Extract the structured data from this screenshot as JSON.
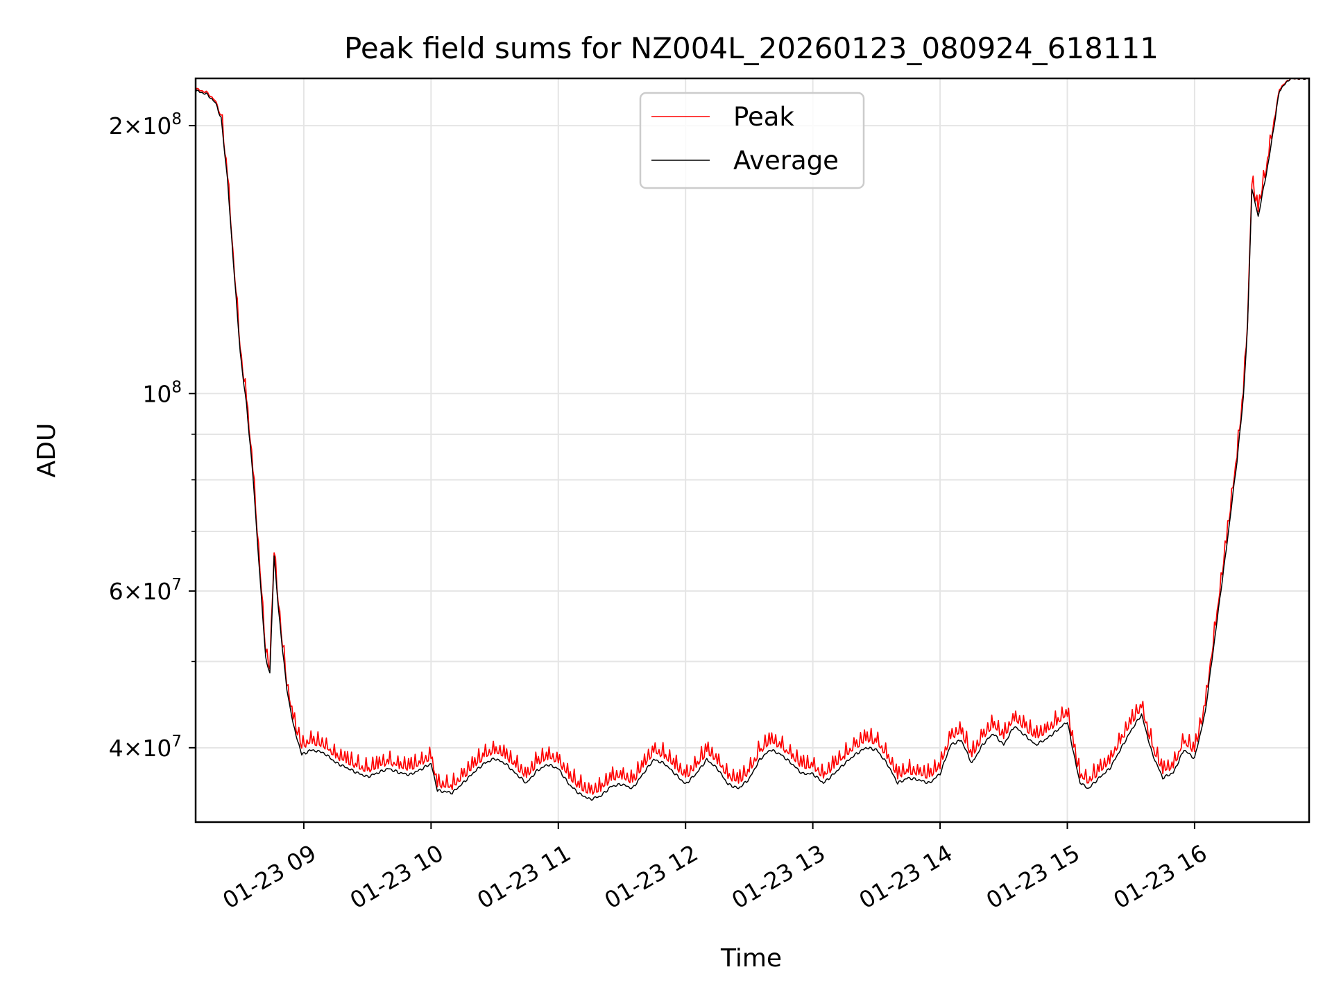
{
  "chart_data": {
    "type": "line",
    "title": "Peak field sums for NZ004L_20260123_080924_618111",
    "xlabel": "Time",
    "ylabel": "ADU",
    "yscale": "log",
    "xlim": [
      "2026-01-23 08:09",
      "2026-01-23 16:54"
    ],
    "ylim": [
      33000000,
      226000000
    ],
    "grid": true,
    "legend_position": "upper center",
    "x_ticks": [
      {
        "t": "2026-01-23 09:00",
        "label": "01-23 09"
      },
      {
        "t": "2026-01-23 10:00",
        "label": "01-23 10"
      },
      {
        "t": "2026-01-23 11:00",
        "label": "01-23 11"
      },
      {
        "t": "2026-01-23 12:00",
        "label": "01-23 12"
      },
      {
        "t": "2026-01-23 13:00",
        "label": "01-23 13"
      },
      {
        "t": "2026-01-23 14:00",
        "label": "01-23 14"
      },
      {
        "t": "2026-01-23 15:00",
        "label": "01-23 15"
      },
      {
        "t": "2026-01-23 16:00",
        "label": "01-23 16"
      }
    ],
    "y_major_ticks": [
      {
        "value": 40000000,
        "mant": "4",
        "exp": "7"
      },
      {
        "value": 60000000,
        "mant": "6",
        "exp": "7"
      },
      {
        "value": 100000000,
        "mant": "",
        "exp": "8"
      },
      {
        "value": 200000000,
        "mant": "2",
        "exp": "8"
      }
    ],
    "y_minor_ticks": [
      50000000,
      70000000,
      80000000,
      90000000
    ],
    "series": [
      {
        "name": "Peak",
        "color": "#ff0000",
        "jitter": 1,
        "x": [
          "2026-01-23 08:09",
          "2026-01-23 08:14",
          "2026-01-23 08:18",
          "2026-01-23 08:21",
          "2026-01-23 08:24",
          "2026-01-23 08:26",
          "2026-01-23 08:28",
          "2026-01-23 08:30",
          "2026-01-23 08:33",
          "2026-01-23 08:36",
          "2026-01-23 08:38",
          "2026-01-23 08:40",
          "2026-01-23 08:42",
          "2026-01-23 08:44",
          "2026-01-23 08:46",
          "2026-01-23 08:48",
          "2026-01-23 08:50",
          "2026-01-23 08:52",
          "2026-01-23 08:55",
          "2026-01-23 08:59",
          "2026-01-23 09:04",
          "2026-01-23 09:10",
          "2026-01-23 09:15",
          "2026-01-23 09:20",
          "2026-01-23 09:25",
          "2026-01-23 09:30",
          "2026-01-23 09:35",
          "2026-01-23 09:40",
          "2026-01-23 09:45",
          "2026-01-23 09:50",
          "2026-01-23 09:55",
          "2026-01-23 10:00",
          "2026-01-23 10:03",
          "2026-01-23 10:10",
          "2026-01-23 10:15",
          "2026-01-23 10:20",
          "2026-01-23 10:25",
          "2026-01-23 10:30",
          "2026-01-23 10:35",
          "2026-01-23 10:40",
          "2026-01-23 10:45",
          "2026-01-23 10:50",
          "2026-01-23 10:55",
          "2026-01-23 11:00",
          "2026-01-23 11:05",
          "2026-01-23 11:10",
          "2026-01-23 11:15",
          "2026-01-23 11:20",
          "2026-01-23 11:25",
          "2026-01-23 11:30",
          "2026-01-23 11:35",
          "2026-01-23 11:40",
          "2026-01-23 11:45",
          "2026-01-23 11:50",
          "2026-01-23 11:55",
          "2026-01-23 12:00",
          "2026-01-23 12:05",
          "2026-01-23 12:10",
          "2026-01-23 12:15",
          "2026-01-23 12:20",
          "2026-01-23 12:25",
          "2026-01-23 12:30",
          "2026-01-23 12:35",
          "2026-01-23 12:40",
          "2026-01-23 12:45",
          "2026-01-23 12:50",
          "2026-01-23 12:55",
          "2026-01-23 13:00",
          "2026-01-23 13:05",
          "2026-01-23 13:10",
          "2026-01-23 13:15",
          "2026-01-23 13:20",
          "2026-01-23 13:25",
          "2026-01-23 13:30",
          "2026-01-23 13:35",
          "2026-01-23 13:40",
          "2026-01-23 13:45",
          "2026-01-23 13:50",
          "2026-01-23 13:55",
          "2026-01-23 14:00",
          "2026-01-23 14:05",
          "2026-01-23 14:10",
          "2026-01-23 14:15",
          "2026-01-23 14:20",
          "2026-01-23 14:25",
          "2026-01-23 14:30",
          "2026-01-23 14:35",
          "2026-01-23 14:40",
          "2026-01-23 14:45",
          "2026-01-23 14:50",
          "2026-01-23 14:55",
          "2026-01-23 15:00",
          "2026-01-23 15:03",
          "2026-01-23 15:06",
          "2026-01-23 15:10",
          "2026-01-23 15:15",
          "2026-01-23 15:20",
          "2026-01-23 15:25",
          "2026-01-23 15:30",
          "2026-01-23 15:35",
          "2026-01-23 15:40",
          "2026-01-23 15:45",
          "2026-01-23 15:50",
          "2026-01-23 15:55",
          "2026-01-23 16:00",
          "2026-01-23 16:05",
          "2026-01-23 16:10",
          "2026-01-23 16:15",
          "2026-01-23 16:20",
          "2026-01-23 16:23",
          "2026-01-23 16:25",
          "2026-01-23 16:27",
          "2026-01-23 16:30",
          "2026-01-23 16:35",
          "2026-01-23 16:40",
          "2026-01-23 16:45",
          "2026-01-23 16:54"
        ],
        "y": [
          220000000,
          218000000,
          214000000,
          205000000,
          175000000,
          150000000,
          130000000,
          112000000,
          98000000,
          82000000,
          70000000,
          60000000,
          51000000,
          49000000,
          66000000,
          58000000,
          52000000,
          47000000,
          43000000,
          40000000,
          40500000,
          40000000,
          39000000,
          38500000,
          38000000,
          37600000,
          38000000,
          38400000,
          38000000,
          37800000,
          38300000,
          38900000,
          36200000,
          36000000,
          37000000,
          38000000,
          39000000,
          39500000,
          39000000,
          38000000,
          37000000,
          38300000,
          38900000,
          38500000,
          37000000,
          36000000,
          35500000,
          35800000,
          36800000,
          37000000,
          36500000,
          38000000,
          39500000,
          39000000,
          38000000,
          37000000,
          38000000,
          39500000,
          38500000,
          37000000,
          36500000,
          37500000,
          39500000,
          40500000,
          40000000,
          39000000,
          38000000,
          38000000,
          37000000,
          38000000,
          39000000,
          40000000,
          40700000,
          40500000,
          39000000,
          37000000,
          37500000,
          37300000,
          37000000,
          38000000,
          41000000,
          41500000,
          39000000,
          41000000,
          42200000,
          41000000,
          43000000,
          42000000,
          41000000,
          41600000,
          42500000,
          43500000,
          40000000,
          37000000,
          36500000,
          37500000,
          38500000,
          40500000,
          42500000,
          44300000,
          40000000,
          37500000,
          38000000,
          40500000,
          39500000,
          44500000,
          55000000,
          68000000,
          85000000,
          100000000,
          120000000,
          172000000,
          160000000,
          185000000,
          220000000,
          226000000,
          226000000
        ]
      },
      {
        "name": "Average",
        "color": "#000000",
        "jitter": 0,
        "x": [
          "2026-01-23 08:09",
          "2026-01-23 08:14",
          "2026-01-23 08:18",
          "2026-01-23 08:21",
          "2026-01-23 08:24",
          "2026-01-23 08:26",
          "2026-01-23 08:28",
          "2026-01-23 08:30",
          "2026-01-23 08:33",
          "2026-01-23 08:36",
          "2026-01-23 08:38",
          "2026-01-23 08:40",
          "2026-01-23 08:42",
          "2026-01-23 08:44",
          "2026-01-23 08:46",
          "2026-01-23 08:48",
          "2026-01-23 08:50",
          "2026-01-23 08:52",
          "2026-01-23 08:55",
          "2026-01-23 08:59",
          "2026-01-23 09:04",
          "2026-01-23 09:10",
          "2026-01-23 09:15",
          "2026-01-23 09:20",
          "2026-01-23 09:25",
          "2026-01-23 09:30",
          "2026-01-23 09:35",
          "2026-01-23 09:40",
          "2026-01-23 09:45",
          "2026-01-23 09:50",
          "2026-01-23 09:55",
          "2026-01-23 10:00",
          "2026-01-23 10:03",
          "2026-01-23 10:10",
          "2026-01-23 10:15",
          "2026-01-23 10:20",
          "2026-01-23 10:25",
          "2026-01-23 10:30",
          "2026-01-23 10:35",
          "2026-01-23 10:40",
          "2026-01-23 10:45",
          "2026-01-23 10:50",
          "2026-01-23 10:55",
          "2026-01-23 11:00",
          "2026-01-23 11:05",
          "2026-01-23 11:10",
          "2026-01-23 11:15",
          "2026-01-23 11:20",
          "2026-01-23 11:25",
          "2026-01-23 11:30",
          "2026-01-23 11:35",
          "2026-01-23 11:40",
          "2026-01-23 11:45",
          "2026-01-23 11:50",
          "2026-01-23 11:55",
          "2026-01-23 12:00",
          "2026-01-23 12:05",
          "2026-01-23 12:10",
          "2026-01-23 12:15",
          "2026-01-23 12:20",
          "2026-01-23 12:25",
          "2026-01-23 12:30",
          "2026-01-23 12:35",
          "2026-01-23 12:40",
          "2026-01-23 12:45",
          "2026-01-23 12:50",
          "2026-01-23 12:55",
          "2026-01-23 13:00",
          "2026-01-23 13:05",
          "2026-01-23 13:10",
          "2026-01-23 13:15",
          "2026-01-23 13:20",
          "2026-01-23 13:25",
          "2026-01-23 13:30",
          "2026-01-23 13:35",
          "2026-01-23 13:40",
          "2026-01-23 13:45",
          "2026-01-23 13:50",
          "2026-01-23 13:55",
          "2026-01-23 14:00",
          "2026-01-23 14:05",
          "2026-01-23 14:10",
          "2026-01-23 14:15",
          "2026-01-23 14:20",
          "2026-01-23 14:25",
          "2026-01-23 14:30",
          "2026-01-23 14:35",
          "2026-01-23 14:40",
          "2026-01-23 14:45",
          "2026-01-23 14:50",
          "2026-01-23 14:55",
          "2026-01-23 15:00",
          "2026-01-23 15:03",
          "2026-01-23 15:06",
          "2026-01-23 15:10",
          "2026-01-23 15:15",
          "2026-01-23 15:20",
          "2026-01-23 15:25",
          "2026-01-23 15:30",
          "2026-01-23 15:35",
          "2026-01-23 15:40",
          "2026-01-23 15:45",
          "2026-01-23 15:50",
          "2026-01-23 15:55",
          "2026-01-23 16:00",
          "2026-01-23 16:05",
          "2026-01-23 16:10",
          "2026-01-23 16:15",
          "2026-01-23 16:20",
          "2026-01-23 16:23",
          "2026-01-23 16:25",
          "2026-01-23 16:27",
          "2026-01-23 16:30",
          "2026-01-23 16:35",
          "2026-01-23 16:40",
          "2026-01-23 16:45",
          "2026-01-23 16:54"
        ],
        "y": [
          219000000,
          217000000,
          213000000,
          204000000,
          174000000,
          149000000,
          129000000,
          111000000,
          97000000,
          81000000,
          69000000,
          59000000,
          50500000,
          48500000,
          65500000,
          57500000,
          51500000,
          46500000,
          42500000,
          39300000,
          39800000,
          39400000,
          38500000,
          38000000,
          37500000,
          37100000,
          37500000,
          37900000,
          37500000,
          37300000,
          37800000,
          38400000,
          35800000,
          35600000,
          36500000,
          37500000,
          38400000,
          38900000,
          38400000,
          37400000,
          36500000,
          37700000,
          38300000,
          37900000,
          36400000,
          35500000,
          35000000,
          35300000,
          36200000,
          36400000,
          36000000,
          37400000,
          38800000,
          38400000,
          37400000,
          36400000,
          37400000,
          38800000,
          37900000,
          36400000,
          36000000,
          36900000,
          38800000,
          39800000,
          39300000,
          38400000,
          37400000,
          37400000,
          36500000,
          37400000,
          38400000,
          39300000,
          40000000,
          39800000,
          38400000,
          36500000,
          37000000,
          36800000,
          36500000,
          37400000,
          40300000,
          40800000,
          38400000,
          40300000,
          41500000,
          40300000,
          42300000,
          41300000,
          40300000,
          40900000,
          41800000,
          42800000,
          39400000,
          36500000,
          36000000,
          37000000,
          37900000,
          39800000,
          41800000,
          43600000,
          39400000,
          37000000,
          37500000,
          39800000,
          38900000,
          43800000,
          54200000,
          67000000,
          84000000,
          99000000,
          119000000,
          170000000,
          158000000,
          183000000,
          219000000,
          226000000,
          226000000
        ]
      }
    ]
  }
}
